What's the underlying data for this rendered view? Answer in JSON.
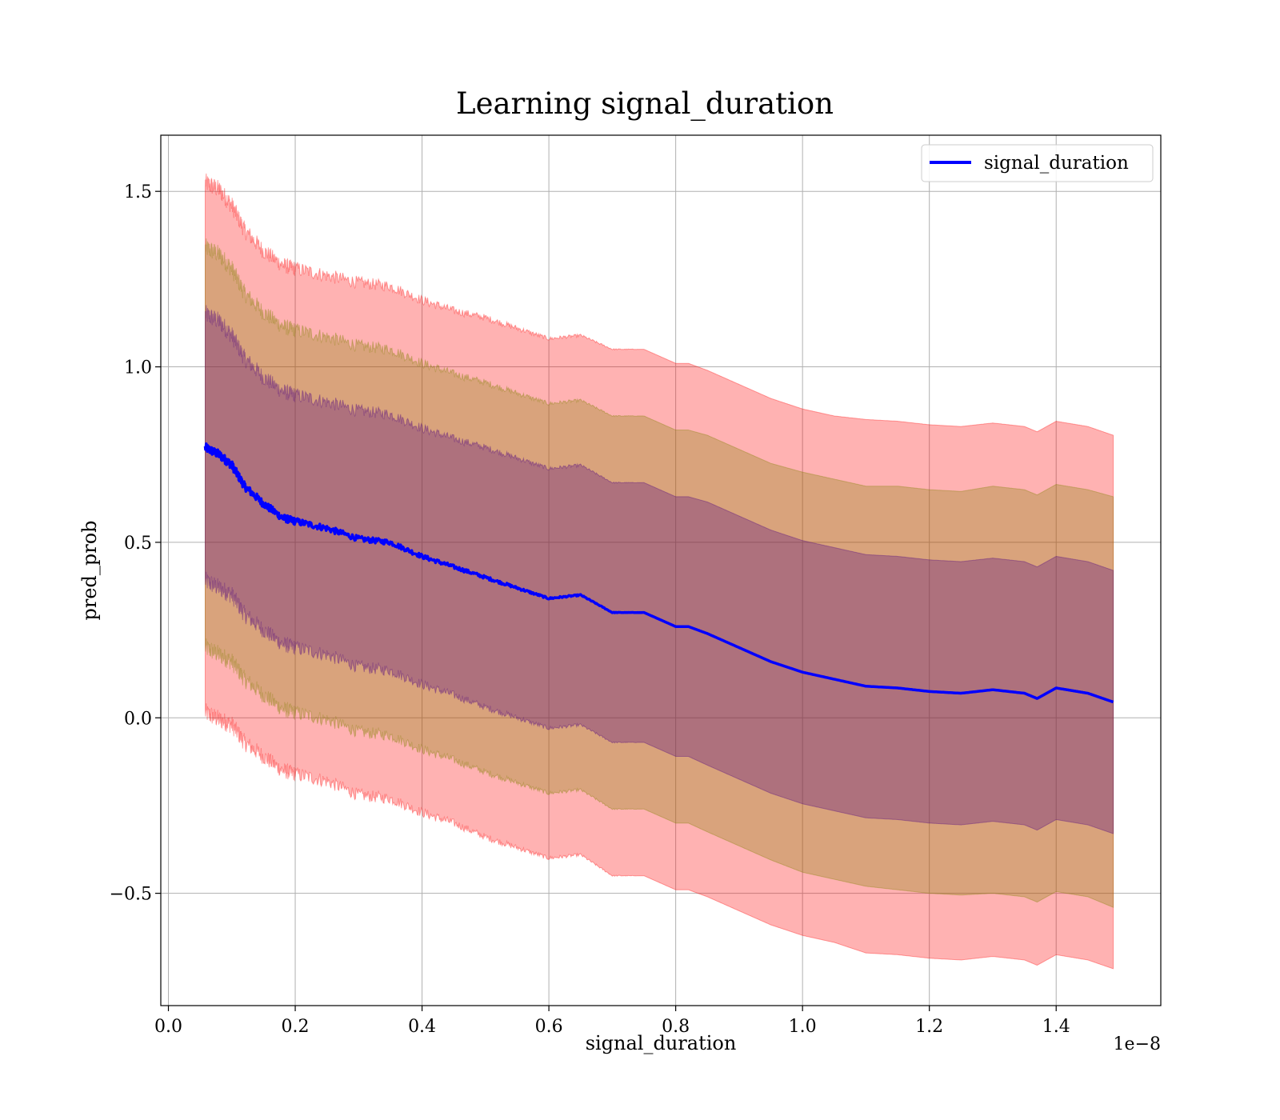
{
  "chart_data": {
    "type": "line",
    "title": "Learning signal_duration",
    "xlabel": "signal_duration",
    "ylabel": "pred_prob",
    "x_offset_text": "1e−8",
    "xlim": [
      -0.012,
      1.565
    ],
    "ylim": [
      -0.82,
      1.66
    ],
    "grid": true,
    "legend_position": "top-right",
    "x_ticks": [
      0.0,
      0.2,
      0.4,
      0.6,
      0.8,
      1.0,
      1.2,
      1.4
    ],
    "x_tick_labels": [
      "0.0",
      "0.2",
      "0.4",
      "0.6",
      "0.8",
      "1.0",
      "1.2",
      "1.4"
    ],
    "y_ticks": [
      -0.5,
      0.0,
      0.5,
      1.0,
      1.5
    ],
    "y_tick_labels": [
      "−0.5",
      "0.0",
      "0.5",
      "1.0",
      "1.5"
    ],
    "colors": {
      "line": "#0000ff",
      "band_outer": "#ff0000",
      "band_middle": "#808000",
      "band_inner": "#4b0082",
      "grid": "#b0b0b0"
    },
    "series": [
      {
        "name": "signal_duration",
        "x": [
          0.058,
          0.08,
          0.1,
          0.12,
          0.15,
          0.18,
          0.2,
          0.25,
          0.3,
          0.35,
          0.4,
          0.45,
          0.5,
          0.55,
          0.6,
          0.65,
          0.7,
          0.75,
          0.8,
          0.82,
          0.85,
          0.9,
          0.95,
          1.0,
          1.05,
          1.1,
          1.15,
          1.2,
          1.25,
          1.3,
          1.35,
          1.37,
          1.4,
          1.45,
          1.49
        ],
        "y": [
          0.77,
          0.75,
          0.72,
          0.66,
          0.61,
          0.57,
          0.56,
          0.54,
          0.51,
          0.5,
          0.46,
          0.43,
          0.4,
          0.37,
          0.34,
          0.35,
          0.3,
          0.3,
          0.26,
          0.26,
          0.24,
          0.2,
          0.16,
          0.13,
          0.11,
          0.09,
          0.085,
          0.075,
          0.07,
          0.08,
          0.07,
          0.055,
          0.085,
          0.07,
          0.045
        ]
      }
    ],
    "bands": [
      {
        "name": "outer",
        "color": "#ff0000",
        "halfwidth": [
          0.755,
          0.755,
          0.74,
          0.73,
          0.72,
          0.72,
          0.72,
          0.72,
          0.73,
          0.73,
          0.73,
          0.73,
          0.74,
          0.74,
          0.74,
          0.74,
          0.75,
          0.75,
          0.75,
          0.75,
          0.75,
          0.75,
          0.75,
          0.75,
          0.75,
          0.76,
          0.76,
          0.76,
          0.76,
          0.76,
          0.76,
          0.76,
          0.76,
          0.76,
          0.76
        ]
      },
      {
        "name": "middle",
        "color": "#808000",
        "halfwidth": [
          0.57,
          0.57,
          0.56,
          0.55,
          0.545,
          0.545,
          0.545,
          0.545,
          0.55,
          0.55,
          0.55,
          0.55,
          0.555,
          0.555,
          0.555,
          0.555,
          0.56,
          0.56,
          0.56,
          0.56,
          0.565,
          0.565,
          0.565,
          0.57,
          0.57,
          0.57,
          0.575,
          0.575,
          0.575,
          0.58,
          0.58,
          0.58,
          0.58,
          0.58,
          0.585
        ]
      },
      {
        "name": "inner",
        "color": "#4b0082",
        "halfwidth": [
          0.38,
          0.38,
          0.37,
          0.365,
          0.36,
          0.36,
          0.36,
          0.36,
          0.365,
          0.365,
          0.365,
          0.365,
          0.37,
          0.37,
          0.37,
          0.37,
          0.37,
          0.37,
          0.37,
          0.37,
          0.375,
          0.375,
          0.375,
          0.375,
          0.375,
          0.375,
          0.375,
          0.375,
          0.375,
          0.375,
          0.375,
          0.375,
          0.375,
          0.375,
          0.375
        ]
      }
    ]
  }
}
